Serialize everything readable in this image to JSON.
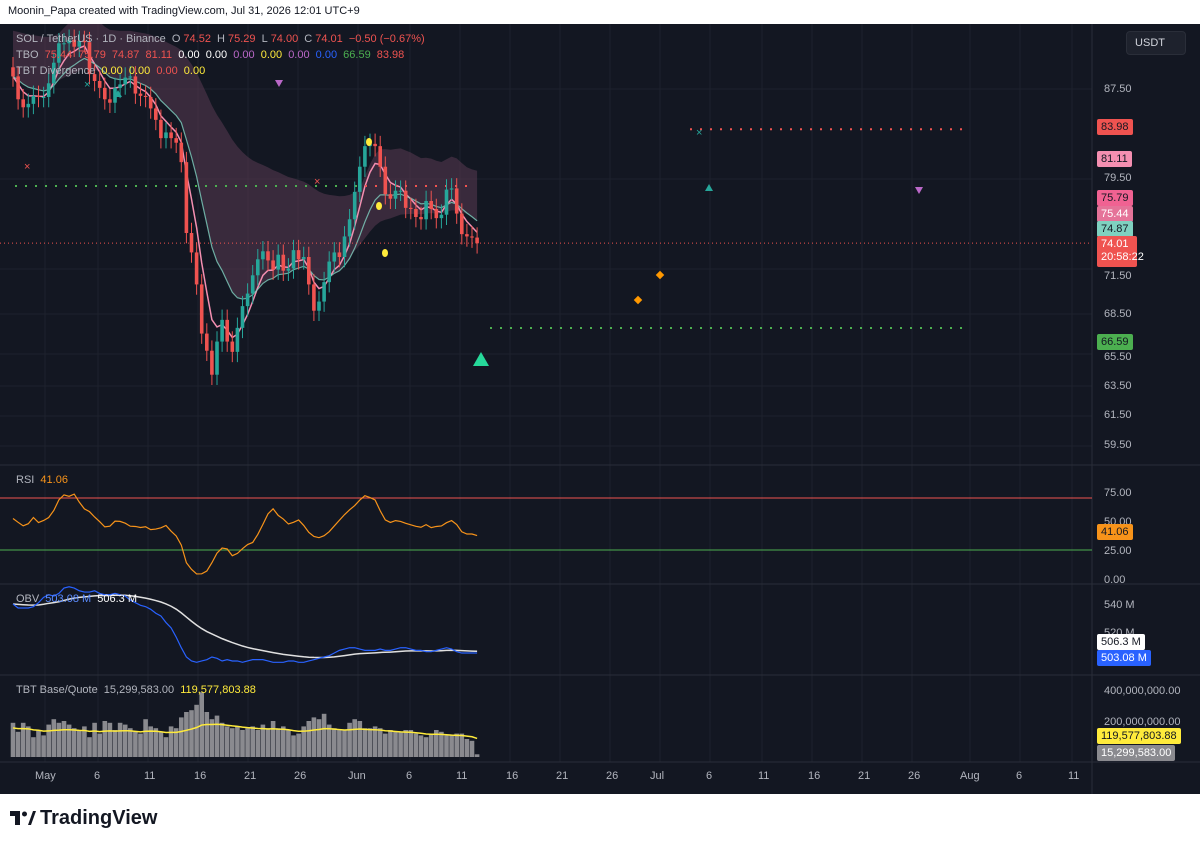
{
  "topbar": {
    "title": "Moonin_Papa created with TradingView.com, Jul 31, 2026 12:01 UTC+9"
  },
  "colors": {
    "bg": "#131722",
    "up": "#26a69a",
    "down": "#ef5350",
    "grid": "#1e222d",
    "band": "#5a3a52",
    "teal": "#7fd1c0",
    "pink": "#f48fb1",
    "rsi": "#f7931a",
    "obv": "#2962ff",
    "obvma": "#e0e0e0",
    "vol": "#8a8a8f",
    "yellow": "#ffeb3b",
    "purple": "#ba68c8",
    "green_dots": "#4caf50",
    "red_dots": "#ef5350"
  },
  "legend": {
    "main": {
      "symbol": "SOL / TetherUS · 1D · Binance",
      "o_lbl": "O",
      "o": "74.52",
      "h_lbl": "H",
      "h": "75.29",
      "l_lbl": "L",
      "l": "74.00",
      "c_lbl": "C",
      "c": "74.01",
      "chg": "−0.50 (−0.67%)"
    },
    "tbo": {
      "name": "TBO",
      "vals": [
        "75.44",
        "75.79",
        "74.87",
        "81.11",
        "0.00",
        "0.00",
        "0.00",
        "0.00",
        "0.00",
        "0.00",
        "66.59",
        "83.98"
      ]
    },
    "div": {
      "name": "TBT Divergence",
      "vals": [
        "0.00",
        "0.00",
        "0.00",
        "0.00"
      ]
    },
    "rsi": {
      "name": "RSI",
      "val": "41.06"
    },
    "obv": {
      "name": "OBV",
      "v1": "503.08 M",
      "v2": "506.3 M"
    },
    "vol": {
      "name": "TBT Base/Quote",
      "v1": "15,299,583.00",
      "v2": "119,577,803.88"
    }
  },
  "currency_button": "USDT",
  "price_axis": [
    "87.50",
    "79.50",
    "71.50",
    "68.50",
    "65.50",
    "63.50",
    "61.50",
    "59.50"
  ],
  "price_tags": {
    "t1": "83.98",
    "t2": "81.11",
    "t3": "75.79",
    "t4": "75.44",
    "t5": "74.87",
    "t6": "74.01",
    "t7": "20:58:22",
    "t8": "66.59"
  },
  "rsi_axis": [
    "75.00",
    "50.00",
    "25.00",
    "0.00"
  ],
  "rsi_tag": "41.06",
  "obv_axis": [
    "540 M",
    "520 M"
  ],
  "obv_tags": {
    "a": "506.3 M",
    "b": "503.08 M"
  },
  "vol_axis": [
    "400,000,000.00",
    "200,000,000.00"
  ],
  "vol_tags": {
    "a": "119,577,803.88",
    "b": "15,299,583.00"
  },
  "time_axis": [
    "May",
    "6",
    "11",
    "16",
    "21",
    "26",
    "Jun",
    "6",
    "11",
    "16",
    "21",
    "26",
    "Jul",
    "6",
    "11",
    "16",
    "21",
    "26",
    "Aug",
    "6",
    "11"
  ],
  "footer": {
    "logo": "TradingView"
  },
  "chart_data": {
    "type": "candlestick",
    "symbol": "SOL / TetherUS",
    "interval": "1D",
    "exchange": "Binance",
    "x": [
      "Apr 30",
      "May 1",
      "May 2",
      "May 3",
      "May 4",
      "May 5",
      "May 6",
      "May 7",
      "May 8",
      "May 9",
      "May 10",
      "May 11",
      "May 12",
      "May 13",
      "May 14",
      "May 15",
      "May 16",
      "May 17",
      "May 18",
      "May 19",
      "May 20",
      "May 21",
      "May 22",
      "May 23",
      "May 24",
      "May 25",
      "May 26",
      "May 27",
      "May 28",
      "May 29",
      "May 30",
      "May 31",
      "Jun 1",
      "Jun 2",
      "Jun 3",
      "Jun 4",
      "Jun 5",
      "Jun 6",
      "Jun 7",
      "Jun 8",
      "Jun 9",
      "Jun 10",
      "Jun 11",
      "Jun 12",
      "Jun 13",
      "Jun 14",
      "Jun 15",
      "Jun 16",
      "Jun 17",
      "Jun 18",
      "Jun 19",
      "Jun 20",
      "Jun 21",
      "Jun 22",
      "Jun 23",
      "Jun 24",
      "Jun 25",
      "Jun 26",
      "Jun 27",
      "Jun 28",
      "Jun 29",
      "Jun 30",
      "Jul 1",
      "Jul 2",
      "Jul 3",
      "Jul 4",
      "Jul 5",
      "Jul 6",
      "Jul 7",
      "Jul 8",
      "Jul 9",
      "Jul 10",
      "Jul 11",
      "Jul 12",
      "Jul 13",
      "Jul 14",
      "Jul 15",
      "Jul 16",
      "Jul 17",
      "Jul 18",
      "Jul 19",
      "Jul 20",
      "Jul 21",
      "Jul 22",
      "Jul 23",
      "Jul 24",
      "Jul 25",
      "Jul 26",
      "Jul 27",
      "Jul 28",
      "Jul 29",
      "Jul 30"
    ],
    "close": [
      88.6,
      86.6,
      85.9,
      86.2,
      86.9,
      86.8,
      86.8,
      88.0,
      89.8,
      91.5,
      91.5,
      91.8,
      91.2,
      91.7,
      91.6,
      88.8,
      88.2,
      87.6,
      86.6,
      86.3,
      87.6,
      87.9,
      88.5,
      88.6,
      87.1,
      86.9,
      86.8,
      85.8,
      84.8,
      83.2,
      83.7,
      83.2,
      82.8,
      81.1,
      74.9,
      73.2,
      70.4,
      66.1,
      64.6,
      62.5,
      65.4,
      67.3,
      65.4,
      64.5,
      66.6,
      68.5,
      69.6,
      71.2,
      72.6,
      73.3,
      72.5,
      71.7,
      73.0,
      71.6,
      71.8,
      73.4,
      72.6,
      72.8,
      70.4,
      68.1,
      68.9,
      70.6,
      72.4,
      73.2,
      72.8,
      74.6,
      76.1,
      78.5,
      80.7,
      82.5,
      82.7,
      82.5,
      80.7,
      78.3,
      77.9,
      78.6,
      78.6,
      77.1,
      77.0,
      76.3,
      76.1,
      77.7,
      77.0,
      76.2,
      76.5,
      78.7,
      78.8,
      76.6,
      74.8,
      74.6,
      74.5,
      74.0
    ],
    "tick_labels": {
      "price": [
        "87.50",
        "79.50",
        "71.50",
        "68.50",
        "65.50",
        "63.50",
        "61.50",
        "59.50"
      ]
    },
    "last_price": 74.01,
    "levels": {
      "resistance": 83.98,
      "support": 66.59
    },
    "rsi": [
      54.2,
      51.3,
      48.6,
      50.2,
      55.0,
      51.1,
      52.7,
      55.0,
      60.4,
      68.6,
      72.4,
      71.3,
      73.0,
      66.8,
      61.6,
      59.5,
      55.4,
      51.8,
      47.8,
      48.3,
      52.2,
      52.0,
      50.6,
      48.3,
      48.1,
      47.3,
      47.9,
      45.7,
      46.1,
      47.1,
      48.9,
      44.5,
      40.8,
      33.8,
      20.2,
      15.1,
      11.6,
      11.7,
      13.8,
      20.2,
      27.6,
      31.5,
      30.8,
      25.6,
      27.4,
      31.0,
      34.2,
      35.8,
      42.0,
      49.7,
      57.8,
      61.7,
      56.6,
      53.8,
      50.0,
      51.3,
      53.1,
      48.9,
      43.6,
      40.4,
      39.5,
      41.0,
      44.1,
      48.5,
      52.9,
      57.2,
      60.9,
      64.2,
      68.4,
      71.8,
      70.3,
      68.5,
      60.2,
      53.1,
      51.2,
      52.6,
      52.0,
      50.5,
      49.4,
      48.2,
      47.5,
      49.5,
      47.2,
      48.1,
      48.5,
      51.0,
      52.6,
      49.6,
      44.0,
      42.3,
      42.3,
      41.1
    ],
    "obv_m": [
      540,
      537,
      537,
      537,
      538,
      541,
      545,
      547,
      546,
      548,
      552,
      553,
      552,
      550,
      549,
      549,
      550,
      548,
      547,
      547,
      548,
      547,
      546,
      543,
      541,
      539,
      538,
      536,
      533,
      531,
      526,
      522,
      515,
      507,
      500,
      497,
      496,
      497,
      498,
      500,
      499,
      497,
      498,
      497,
      497,
      496,
      497,
      498,
      498,
      498,
      497,
      496,
      496,
      496,
      497,
      497,
      496,
      496,
      497,
      498,
      499,
      500,
      501,
      503,
      505,
      506,
      507,
      507,
      506,
      505,
      505,
      505,
      506,
      505,
      505,
      506,
      507,
      507,
      506,
      505,
      505,
      504,
      504,
      505,
      506,
      507,
      506,
      504,
      503,
      503,
      503,
      503
    ],
    "volume_m": [
      190,
      140,
      190,
      170,
      110,
      150,
      120,
      180,
      210,
      190,
      200,
      180,
      160,
      150,
      170,
      110,
      190,
      130,
      200,
      190,
      150,
      190,
      180,
      160,
      140,
      130,
      210,
      170,
      160,
      140,
      110,
      170,
      160,
      220,
      250,
      260,
      290,
      360,
      250,
      210,
      230,
      190,
      170,
      160,
      170,
      150,
      160,
      170,
      150,
      180,
      160,
      200,
      160,
      170,
      150,
      120,
      130,
      170,
      200,
      220,
      210,
      240,
      180,
      160,
      150,
      150,
      190,
      210,
      200,
      160,
      160,
      170,
      160,
      130,
      150,
      140,
      140,
      150,
      150,
      130,
      120,
      110,
      130,
      150,
      140,
      120,
      120,
      130,
      130,
      100,
      90,
      15
    ]
  }
}
